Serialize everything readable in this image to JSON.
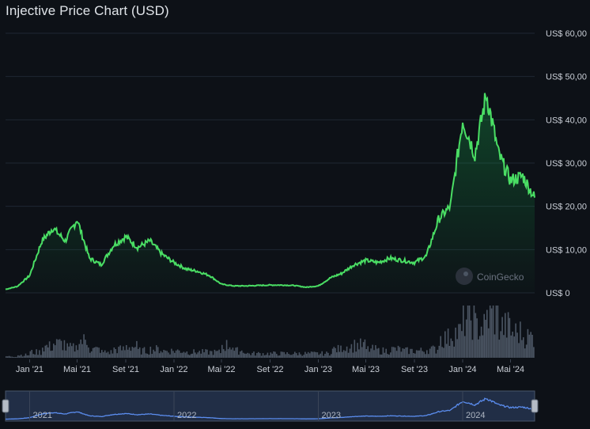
{
  "title": "Injective Price Chart (USD)",
  "watermark": "CoinGecko",
  "colors": {
    "background": "#0d1117",
    "line": "#4ade64",
    "volume": "#4b5563",
    "grid": "#1f2733",
    "navigator": "#5b8def"
  },
  "chart_data": {
    "type": "area",
    "title": "Injective Price Chart (USD)",
    "y_axis": {
      "min": 0,
      "max": 60,
      "ticks": [
        "US$ 0",
        "US$ 10,00",
        "US$ 20,00",
        "US$ 30,00",
        "US$ 40,00",
        "US$ 50,00",
        "US$ 60,00"
      ]
    },
    "x_axis": {
      "ticks": [
        "Jan '21",
        "Mai '21",
        "Set '21",
        "Jan '22",
        "Mai '22",
        "Set '22",
        "Jan '23",
        "Mai '23",
        "Set '23",
        "Jan '24",
        "Mai '24"
      ]
    },
    "navigator_labels": [
      "2021",
      "2022",
      "2023",
      "2024"
    ],
    "series": [
      {
        "name": "Injective",
        "x": [
          "2020-11",
          "2020-12",
          "2021-01",
          "2021-02",
          "2021-03",
          "2021-04",
          "2021-05",
          "2021-06",
          "2021-07",
          "2021-08",
          "2021-09",
          "2021-10",
          "2021-11",
          "2021-12",
          "2022-01",
          "2022-02",
          "2022-03",
          "2022-04",
          "2022-05",
          "2022-06",
          "2022-07",
          "2022-08",
          "2022-09",
          "2022-10",
          "2022-11",
          "2022-12",
          "2023-01",
          "2023-02",
          "2023-03",
          "2023-04",
          "2023-05",
          "2023-06",
          "2023-07",
          "2023-08",
          "2023-09",
          "2023-10",
          "2023-11",
          "2023-12",
          "2024-01",
          "2024-02",
          "2024-03",
          "2024-04",
          "2024-05",
          "2024-06",
          "2024-07"
        ],
        "y": [
          0.8,
          1.5,
          4.0,
          12.0,
          15.0,
          12.0,
          17.0,
          8.0,
          6.5,
          11.0,
          13.0,
          10.5,
          12.0,
          9.0,
          7.0,
          5.5,
          5.0,
          4.0,
          2.0,
          1.6,
          1.6,
          1.7,
          1.8,
          1.8,
          1.7,
          1.3,
          1.6,
          3.5,
          4.5,
          6.5,
          7.5,
          7.0,
          8.0,
          7.5,
          7.0,
          8.5,
          17.0,
          20.0,
          40.0,
          32.0,
          46.0,
          32.0,
          26.0,
          27.0,
          22.0
        ]
      },
      {
        "name": "Volume",
        "x": [
          "2020-11",
          "2020-12",
          "2021-01",
          "2021-02",
          "2021-03",
          "2021-04",
          "2021-05",
          "2021-06",
          "2021-07",
          "2021-08",
          "2021-09",
          "2021-10",
          "2021-11",
          "2021-12",
          "2022-01",
          "2022-02",
          "2022-03",
          "2022-04",
          "2022-05",
          "2022-06",
          "2022-07",
          "2022-08",
          "2022-09",
          "2022-10",
          "2022-11",
          "2022-12",
          "2023-01",
          "2023-02",
          "2023-03",
          "2023-04",
          "2023-05",
          "2023-06",
          "2023-07",
          "2023-08",
          "2023-09",
          "2023-10",
          "2023-11",
          "2023-12",
          "2024-01",
          "2024-02",
          "2024-03",
          "2024-04",
          "2024-05",
          "2024-06",
          "2024-07"
        ],
        "y": [
          1,
          2,
          4,
          8,
          10,
          7,
          12,
          6,
          4,
          6,
          8,
          5,
          6,
          5,
          5,
          4,
          4,
          4,
          9,
          5,
          3,
          3,
          3,
          3,
          3,
          3,
          3,
          6,
          8,
          9,
          6,
          5,
          6,
          5,
          5,
          6,
          14,
          18,
          28,
          22,
          30,
          22,
          18,
          15,
          12
        ]
      }
    ]
  }
}
